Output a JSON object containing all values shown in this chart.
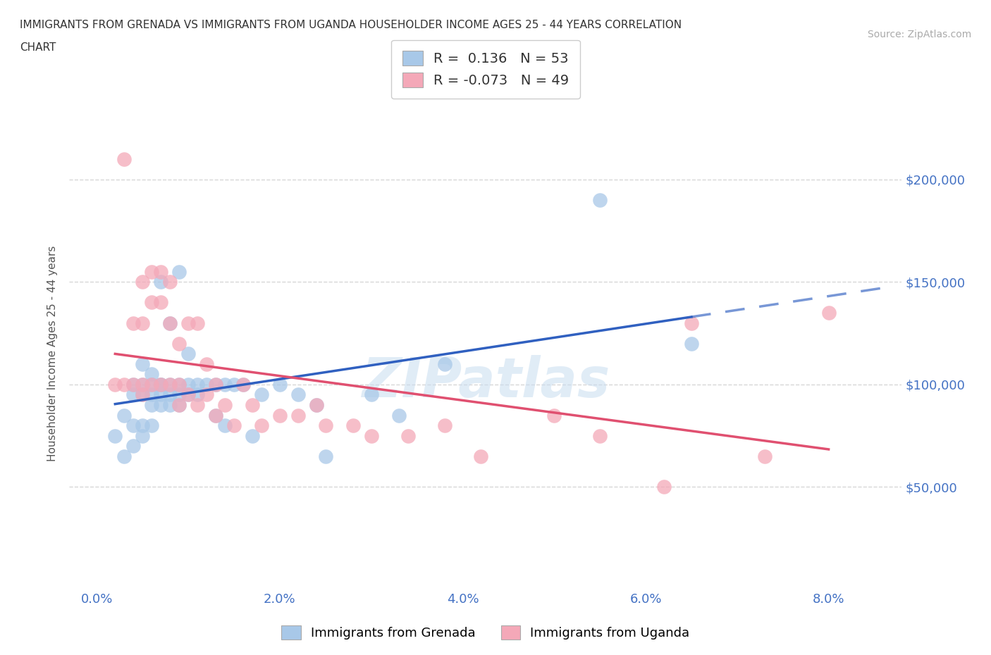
{
  "title_line1": "IMMIGRANTS FROM GRENADA VS IMMIGRANTS FROM UGANDA HOUSEHOLDER INCOME AGES 25 - 44 YEARS CORRELATION",
  "title_line2": "CHART",
  "source_text": "Source: ZipAtlas.com",
  "ylabel": "Householder Income Ages 25 - 44 years",
  "xlabel_ticks": [
    "0.0%",
    "2.0%",
    "4.0%",
    "6.0%",
    "8.0%"
  ],
  "xlabel_tick_vals": [
    0.0,
    0.02,
    0.04,
    0.06,
    0.08
  ],
  "xlim": [
    -0.003,
    0.088
  ],
  "ylim": [
    0,
    230000
  ],
  "ytick_vals": [
    50000,
    100000,
    150000,
    200000
  ],
  "ytick_labels": [
    "$50,000",
    "$100,000",
    "$150,000",
    "$200,000"
  ],
  "grid_color": "#cccccc",
  "legend_R1": "0.136",
  "legend_N1": "53",
  "legend_R2": "-0.073",
  "legend_N2": "49",
  "legend_color1": "#a8c8e8",
  "legend_color2": "#f4a8b8",
  "watermark": "ZIPatlas",
  "series1_label": "Immigrants from Grenada",
  "series2_label": "Immigrants from Uganda",
  "series1_color": "#a8c8e8",
  "series2_color": "#f4a8b8",
  "line1_color": "#3060c0",
  "line2_color": "#e05070",
  "scatter1_x": [
    0.002,
    0.003,
    0.003,
    0.004,
    0.004,
    0.004,
    0.004,
    0.005,
    0.005,
    0.005,
    0.005,
    0.005,
    0.006,
    0.006,
    0.006,
    0.006,
    0.006,
    0.007,
    0.007,
    0.007,
    0.007,
    0.007,
    0.008,
    0.008,
    0.008,
    0.008,
    0.009,
    0.009,
    0.009,
    0.009,
    0.01,
    0.01,
    0.01,
    0.011,
    0.011,
    0.012,
    0.013,
    0.013,
    0.014,
    0.014,
    0.015,
    0.016,
    0.017,
    0.018,
    0.02,
    0.022,
    0.024,
    0.025,
    0.03,
    0.033,
    0.038,
    0.055,
    0.065
  ],
  "scatter1_y": [
    75000,
    65000,
    85000,
    70000,
    80000,
    95000,
    100000,
    75000,
    80000,
    95000,
    100000,
    110000,
    80000,
    90000,
    95000,
    100000,
    105000,
    90000,
    95000,
    100000,
    100000,
    150000,
    90000,
    95000,
    100000,
    130000,
    90000,
    95000,
    100000,
    155000,
    95000,
    100000,
    115000,
    95000,
    100000,
    100000,
    85000,
    100000,
    80000,
    100000,
    100000,
    100000,
    75000,
    95000,
    100000,
    95000,
    90000,
    65000,
    95000,
    85000,
    110000,
    190000,
    120000
  ],
  "scatter2_x": [
    0.002,
    0.003,
    0.003,
    0.004,
    0.004,
    0.005,
    0.005,
    0.005,
    0.005,
    0.006,
    0.006,
    0.006,
    0.007,
    0.007,
    0.007,
    0.008,
    0.008,
    0.008,
    0.009,
    0.009,
    0.009,
    0.01,
    0.01,
    0.011,
    0.011,
    0.012,
    0.012,
    0.013,
    0.013,
    0.014,
    0.015,
    0.016,
    0.017,
    0.018,
    0.02,
    0.022,
    0.024,
    0.025,
    0.028,
    0.03,
    0.034,
    0.038,
    0.042,
    0.05,
    0.055,
    0.062,
    0.065,
    0.073,
    0.08
  ],
  "scatter2_y": [
    100000,
    100000,
    210000,
    100000,
    130000,
    95000,
    100000,
    130000,
    150000,
    100000,
    140000,
    155000,
    100000,
    140000,
    155000,
    100000,
    130000,
    150000,
    90000,
    100000,
    120000,
    95000,
    130000,
    90000,
    130000,
    95000,
    110000,
    85000,
    100000,
    90000,
    80000,
    100000,
    90000,
    80000,
    85000,
    85000,
    90000,
    80000,
    80000,
    75000,
    75000,
    80000,
    65000,
    85000,
    75000,
    50000,
    130000,
    65000,
    135000
  ]
}
